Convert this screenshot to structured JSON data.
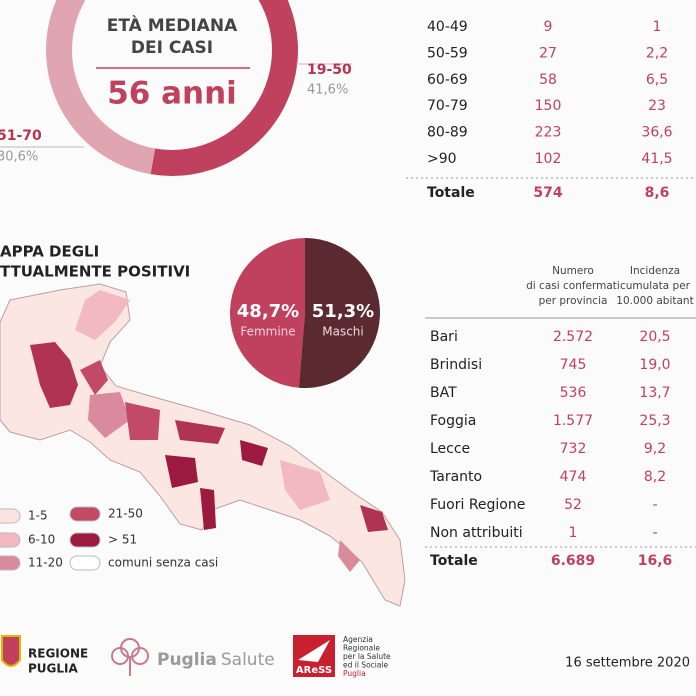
{
  "age_donut": {
    "title_lines": [
      "ETÀ MEDIANA",
      "DEI CASI"
    ],
    "median": "56 anni",
    "segments": [
      {
        "label": "19-50",
        "value": 41.6,
        "value_label": "41,6%",
        "color": "#c0415e"
      },
      {
        "label": "51-70",
        "value": 30.6,
        "value_label": "30,6%",
        "color": "#dfa5b1"
      }
    ]
  },
  "age_table": {
    "rows": [
      [
        "40-49",
        "9",
        "1"
      ],
      [
        "50-59",
        "27",
        "2,2"
      ],
      [
        "60-69",
        "58",
        "6,5"
      ],
      [
        "70-79",
        "150",
        "23"
      ],
      [
        "80-89",
        "223",
        "36,6"
      ],
      [
        ">90",
        "102",
        "41,5"
      ]
    ],
    "total": [
      "Totale",
      "574",
      "8,6"
    ]
  },
  "map": {
    "title_lines": [
      "APPA DEGLI",
      "TTUALMENTE POSITIVI"
    ],
    "legend": [
      {
        "label": "1-5",
        "color": "#fbe4e0"
      },
      {
        "label": "6-10",
        "color": "#f2b9c2"
      },
      {
        "label": "11-20",
        "color": "#d98a9d"
      },
      {
        "label": "21-50",
        "color": "#c24a66"
      },
      {
        "label": "> 51",
        "color": "#9c1a40"
      },
      {
        "label": "comuni senza casi",
        "color": "#ffffff"
      }
    ]
  },
  "sex_pie": {
    "segments": [
      {
        "label": "Femmine",
        "value": 48.7,
        "value_label": "48,7%",
        "color": "#c0415e"
      },
      {
        "label": "Maschi",
        "value": 51.3,
        "value_label": "51,3%",
        "color": "#5b2a30"
      }
    ]
  },
  "province_table": {
    "headers": [
      [
        "Numero",
        "di casi confermati",
        "per provincia"
      ],
      [
        "Incidenza",
        "cumulata per",
        "10.000 abitant"
      ]
    ],
    "rows": [
      [
        "Bari",
        "2.572",
        "20,5"
      ],
      [
        "Brindisi",
        "745",
        "19,0"
      ],
      [
        "BAT",
        "536",
        "13,7"
      ],
      [
        "Foggia",
        "1.577",
        "25,3"
      ],
      [
        "Lecce",
        "732",
        "9,2"
      ],
      [
        "Taranto",
        "474",
        "8,2"
      ],
      [
        "Fuori Regione",
        "52",
        "-"
      ],
      [
        "Non attribuiti",
        "1",
        "-"
      ]
    ],
    "total": [
      "Totale",
      "6.689",
      "16,6"
    ]
  },
  "footer": {
    "regione": [
      "REGIONE",
      "PUGLIA"
    ],
    "salute": [
      "Puglia",
      "Salute"
    ],
    "aress_logo": "AReSS",
    "aress_text": [
      "Agenzia",
      "Regionale",
      "per la Salute",
      "ed il Sociale",
      "Puglia"
    ],
    "date": "16 settembre 2020"
  }
}
